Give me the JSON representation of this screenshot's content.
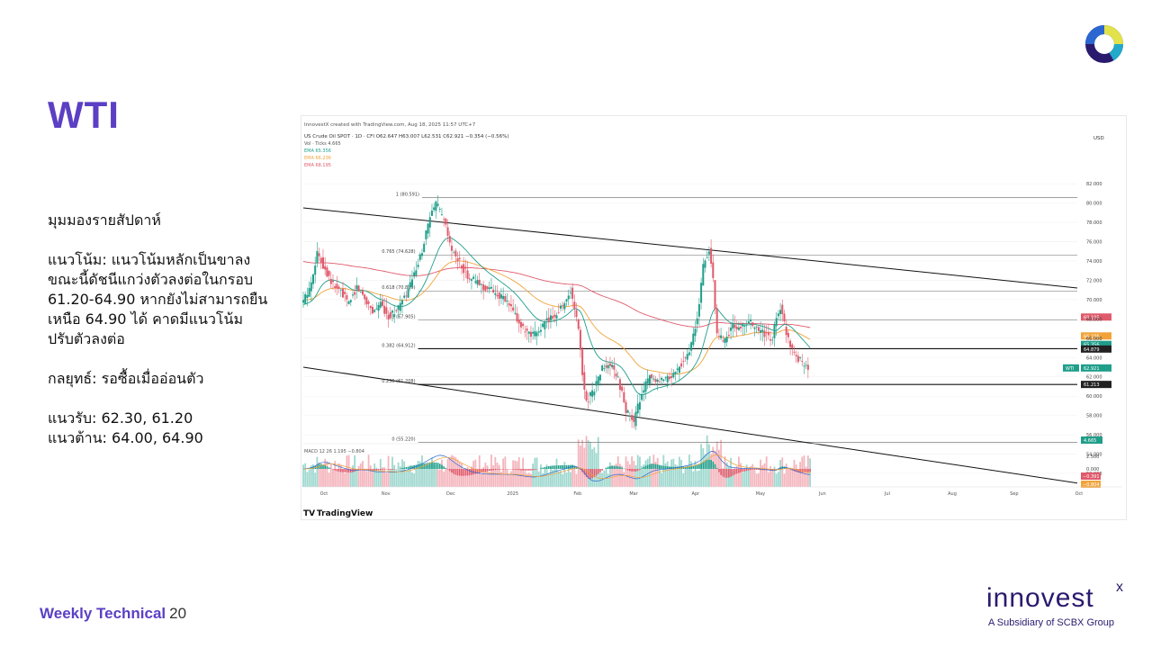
{
  "slide": {
    "title": "WTI",
    "footer_label": "Weekly Technical",
    "page_number": "20"
  },
  "commentary": {
    "heading": "มุมมองรายสัปดาห์",
    "trend_line1": "แนวโน้ม: แนวโน้มหลักเป็นขาลง",
    "trend_line2": "ขณะนี้ดัชนีแกว่งตัวลงต่อในกรอบ",
    "trend_line3": "61.20-64.90 หากยังไม่สามารถยืน",
    "trend_line4": "เหนือ 64.90 ได้ คาดมีแนวโน้ม",
    "trend_line5": "ปรับตัวลงต่อ",
    "strategy": "กลยุทธ์: รอซื้อเมื่ออ่อนตัว",
    "support": "แนวรับ: 62.30, 61.20",
    "resistance": "แนวต้าน: 64.00, 64.90"
  },
  "brand": {
    "name": "innovest",
    "mark": "x",
    "subtitle": "A Subsidiary of SCBX Group",
    "colors": {
      "purple": "#5b3fc4",
      "navy": "#2a1a6e",
      "yellow": "#e2e24a",
      "teal": "#23a9c9",
      "blue": "#2b67d1"
    }
  },
  "chart_header": {
    "credit": "InnovestX created with TradingView.com, Aug 18, 2025 11:57 UTC+7",
    "symbol_line": "US Crude Oil SPOT · 1D · CFI  O62.647 H63.007 L62.531 C62.921 −0.354 (−0.56%)",
    "vol_label": "Vol · Ticks  4.665",
    "ema_lines": [
      "EMA  65.356",
      "EMA  66.236",
      "EMA  68.195"
    ],
    "currency": "USD",
    "tradingview_logo": "TradingView"
  },
  "chart_data": {
    "type": "candlestick",
    "title": "US Crude Oil SPOT · 1D · CFI",
    "price_axis": {
      "ticks": [
        "82.000",
        "80.000",
        "78.000",
        "76.000",
        "74.000",
        "72.000",
        "70.000",
        "68.000",
        "66.000",
        "64.000",
        "62.000",
        "60.000",
        "58.000",
        "56.000",
        "54.000",
        "52.000"
      ],
      "range": [
        50.6,
        83.6
      ]
    },
    "macd_axis": {
      "ticks": [
        "2.500",
        "0.000"
      ]
    },
    "time_axis": [
      "Oct",
      "Nov",
      "Dec",
      "2025",
      "Feb",
      "Mar",
      "Apr",
      "May",
      "Jun",
      "Jul",
      "Aug",
      "Sep",
      "Oct"
    ],
    "fib_levels": [
      {
        "label": "1 (80.591)",
        "value": 80.591
      },
      {
        "label": "0.765 (74.628)",
        "value": 74.628
      },
      {
        "label": "0.618 (70.899)",
        "value": 70.899
      },
      {
        "label": "0.5 (67.905)",
        "value": 67.905
      },
      {
        "label": "0.382 (64.912)",
        "value": 64.912
      },
      {
        "label": "0.236 (61.208)",
        "value": 61.208
      },
      {
        "label": "0 (55.220)",
        "value": 55.22
      }
    ],
    "price_tags": [
      {
        "label": "68.195",
        "value": 68.195,
        "color": "#e05a6b"
      },
      {
        "label": "66.236",
        "value": 66.236,
        "color": "#f1a33a"
      },
      {
        "label": "65.356",
        "value": 65.356,
        "color": "#1f9e8a"
      },
      {
        "label": "64.879",
        "value": 64.879,
        "color": "#222222"
      },
      {
        "label": "62.921",
        "value": 62.921,
        "color": "#1f9e8a"
      },
      {
        "label": "61.213",
        "value": 61.213,
        "color": "#222222"
      }
    ],
    "last_price_label": "WTI",
    "macd_label": "MACD  12 26  1.195  −0.804",
    "macd_values": [
      "−0.391",
      "−0.804"
    ],
    "volume_tag": "4.665",
    "close_series": [
      {
        "t": 0,
        "v": 69.5
      },
      {
        "t": 4,
        "v": 71.0
      },
      {
        "t": 8,
        "v": 74.8
      },
      {
        "t": 12,
        "v": 73.2
      },
      {
        "t": 16,
        "v": 71.5
      },
      {
        "t": 20,
        "v": 70.8
      },
      {
        "t": 24,
        "v": 69.6
      },
      {
        "t": 28,
        "v": 71.3
      },
      {
        "t": 32,
        "v": 70.2
      },
      {
        "t": 36,
        "v": 68.8
      },
      {
        "t": 40,
        "v": 69.5
      },
      {
        "t": 44,
        "v": 68.3
      },
      {
        "t": 48,
        "v": 68.9
      },
      {
        "t": 52,
        "v": 70.1
      },
      {
        "t": 56,
        "v": 72.0
      },
      {
        "t": 60,
        "v": 74.3
      },
      {
        "t": 64,
        "v": 77.8
      },
      {
        "t": 68,
        "v": 80.0
      },
      {
        "t": 72,
        "v": 78.2
      },
      {
        "t": 76,
        "v": 75.0
      },
      {
        "t": 80,
        "v": 73.8
      },
      {
        "t": 84,
        "v": 72.5
      },
      {
        "t": 88,
        "v": 71.9
      },
      {
        "t": 92,
        "v": 71.3
      },
      {
        "t": 96,
        "v": 71.0
      },
      {
        "t": 100,
        "v": 70.4
      },
      {
        "t": 104,
        "v": 69.7
      },
      {
        "t": 108,
        "v": 68.4
      },
      {
        "t": 112,
        "v": 66.9
      },
      {
        "t": 116,
        "v": 66.1
      },
      {
        "t": 120,
        "v": 66.8
      },
      {
        "t": 124,
        "v": 67.8
      },
      {
        "t": 128,
        "v": 68.4
      },
      {
        "t": 132,
        "v": 69.4
      },
      {
        "t": 136,
        "v": 70.9
      },
      {
        "t": 140,
        "v": 67.0
      },
      {
        "t": 142,
        "v": 62.2
      },
      {
        "t": 144,
        "v": 59.5
      },
      {
        "t": 148,
        "v": 60.8
      },
      {
        "t": 152,
        "v": 62.9
      },
      {
        "t": 156,
        "v": 63.2
      },
      {
        "t": 160,
        "v": 61.8
      },
      {
        "t": 164,
        "v": 58.6
      },
      {
        "t": 168,
        "v": 57.2
      },
      {
        "t": 172,
        "v": 60.5
      },
      {
        "t": 176,
        "v": 61.9
      },
      {
        "t": 180,
        "v": 61.3
      },
      {
        "t": 184,
        "v": 61.7
      },
      {
        "t": 188,
        "v": 62.2
      },
      {
        "t": 192,
        "v": 63.4
      },
      {
        "t": 196,
        "v": 64.6
      },
      {
        "t": 200,
        "v": 68.0
      },
      {
        "t": 203,
        "v": 73.4
      },
      {
        "t": 206,
        "v": 75.2
      },
      {
        "t": 208,
        "v": 72.1
      },
      {
        "t": 210,
        "v": 66.2
      },
      {
        "t": 214,
        "v": 65.8
      },
      {
        "t": 218,
        "v": 67.3
      },
      {
        "t": 222,
        "v": 67.0
      },
      {
        "t": 226,
        "v": 67.8
      },
      {
        "t": 230,
        "v": 66.9
      },
      {
        "t": 234,
        "v": 66.4
      },
      {
        "t": 238,
        "v": 65.9
      },
      {
        "t": 240,
        "v": 68.4
      },
      {
        "t": 242,
        "v": 69.2
      },
      {
        "t": 245,
        "v": 66.6
      },
      {
        "t": 248,
        "v": 64.9
      },
      {
        "t": 251,
        "v": 63.9
      },
      {
        "t": 254,
        "v": 63.3
      },
      {
        "t": 256,
        "v": 62.9
      }
    ]
  }
}
